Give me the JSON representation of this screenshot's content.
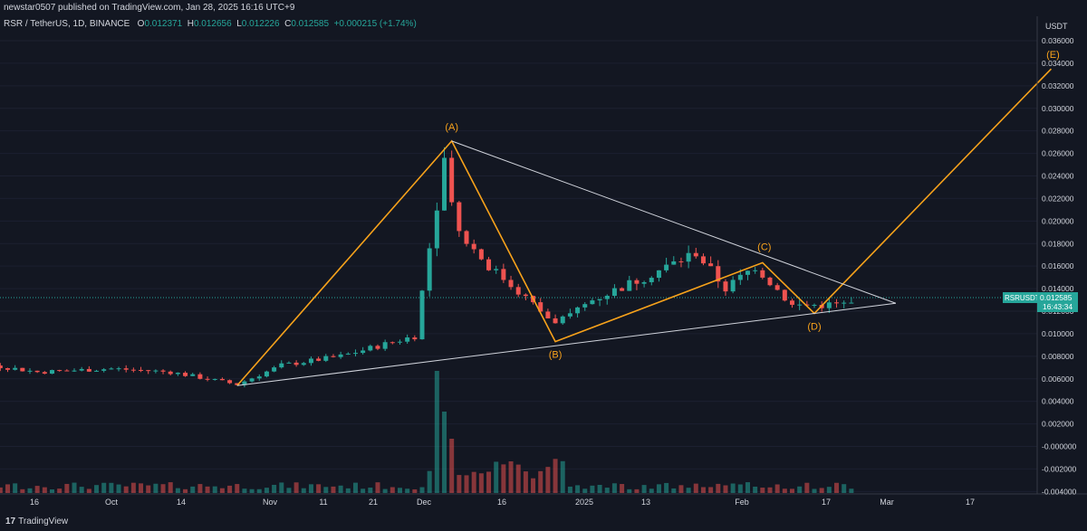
{
  "header": {
    "published": "newstar0507 published on TradingView.com, Jan 28, 2025 16:16 UTC+9"
  },
  "legend": {
    "symbol": "RSR / TetherUS, 1D, BINANCE",
    "o_label": "O",
    "o_value": "0.012371",
    "h_label": "H",
    "h_value": "0.012656",
    "l_label": "L",
    "l_value": "0.012226",
    "c_label": "C",
    "c_value": "0.012585",
    "change": "+0.000215 (+1.74%)"
  },
  "axis": {
    "currency": "USDT",
    "price_tag": "0.012585",
    "price_tag_symbol": "RSRUSDT",
    "countdown": "16:43:34"
  },
  "brand": {
    "name": "TradingView"
  },
  "colors": {
    "bg": "#131722",
    "up": "#26a69a",
    "down": "#ef5350",
    "wave": "#f7a21b",
    "trend": "#d1d4dc"
  },
  "chart_data": {
    "type": "candlestick",
    "x_ticks": [
      "16",
      "Oct",
      "14",
      "Nov",
      "11",
      "21",
      "Dec",
      "16",
      "2025",
      "13",
      "Feb",
      "17",
      "Mar",
      "17"
    ],
    "y_ticks": [
      "0.036000",
      "0.034000",
      "0.032000",
      "0.030000",
      "0.028000",
      "0.026000",
      "0.024000",
      "0.022000",
      "0.020000",
      "0.018000",
      "0.016000",
      "0.014000",
      "0.012000",
      "0.010000",
      "0.008000",
      "0.006000",
      "0.004000",
      "0.002000",
      "-0.000000",
      "-0.002000",
      "-0.004000"
    ],
    "ylim": [
      -0.0048,
      0.0375
    ],
    "last_price": 0.012585,
    "wave_labels": [
      {
        "label": "(A)",
        "date": "2024-12-05",
        "price": 0.0271
      },
      {
        "label": "(B)",
        "date": "2024-12-19",
        "price": 0.0093
      },
      {
        "label": "(C)",
        "date": "2025-01-16",
        "price": 0.0163
      },
      {
        "label": "(D)",
        "date": "2025-01-23",
        "price": 0.0118
      },
      {
        "label": "(E)",
        "date": "2025-02-24",
        "price": 0.0335
      }
    ],
    "wave_path": [
      {
        "date": "2024-11-06",
        "price": 0.0054
      },
      {
        "date": "2024-12-05",
        "price": 0.0271
      },
      {
        "date": "2024-12-19",
        "price": 0.0093
      },
      {
        "date": "2025-01-16",
        "price": 0.0163
      },
      {
        "date": "2025-01-23",
        "price": 0.0118
      },
      {
        "date": "2025-02-24",
        "price": 0.0335
      }
    ],
    "triangle_upper": [
      {
        "date": "2024-12-05",
        "price": 0.0271
      },
      {
        "date": "2025-02-03",
        "price": 0.0127
      }
    ],
    "triangle_lower": [
      {
        "date": "2024-11-06",
        "price": 0.0054
      },
      {
        "date": "2025-02-03",
        "price": 0.0127
      }
    ]
  }
}
